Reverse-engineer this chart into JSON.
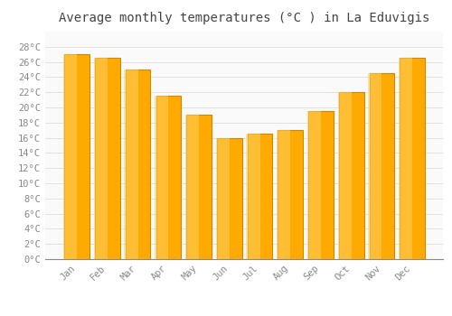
{
  "title": "Average monthly temperatures (°C ) in La Eduvigis",
  "months": [
    "Jan",
    "Feb",
    "Mar",
    "Apr",
    "May",
    "Jun",
    "Jul",
    "Aug",
    "Sep",
    "Oct",
    "Nov",
    "Dec"
  ],
  "values": [
    27.0,
    26.5,
    25.0,
    21.5,
    19.0,
    16.0,
    16.5,
    17.0,
    19.5,
    22.0,
    24.5,
    26.5
  ],
  "bar_color": "#FFAA00",
  "bar_edge_color": "#CC8800",
  "background_color": "#FFFFFF",
  "plot_bg_color": "#FAFAFA",
  "grid_color": "#DDDDDD",
  "title_fontsize": 10,
  "tick_fontsize": 7.5,
  "label_color": "#888888",
  "ylim": [
    0,
    30
  ],
  "yticks": [
    0,
    2,
    4,
    6,
    8,
    10,
    12,
    14,
    16,
    18,
    20,
    22,
    24,
    26,
    28
  ],
  "bar_width": 0.82
}
